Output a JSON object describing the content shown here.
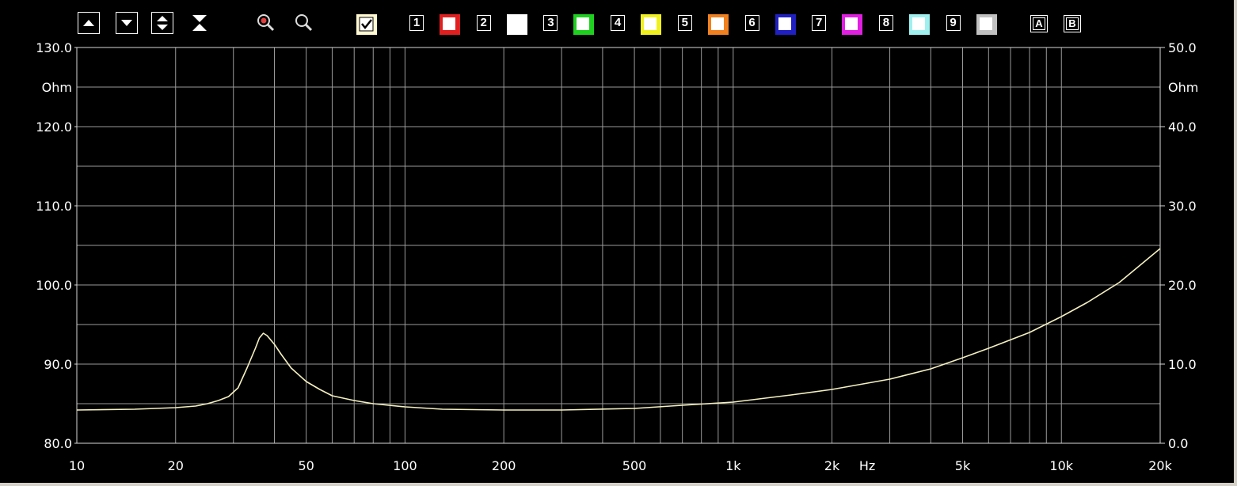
{
  "toolbar": {
    "buttons": [
      {
        "icon": "arrow-up-icon"
      },
      {
        "icon": "arrow-down-icon"
      },
      {
        "icon": "arrows-up-down-icon"
      },
      {
        "icon": "compress-vertical-icon"
      },
      {
        "icon": "zoom-in-icon"
      },
      {
        "icon": "zoom-out-icon"
      }
    ],
    "active_checkbox": true,
    "curve_slots": [
      {
        "label": "1",
        "color": "#e02020"
      },
      {
        "label": "2",
        "color": "#ffffff"
      },
      {
        "label": "3",
        "color": "#20d020"
      },
      {
        "label": "4",
        "color": "#f0f020"
      },
      {
        "label": "5",
        "color": "#f08020"
      },
      {
        "label": "6",
        "color": "#2020c0"
      },
      {
        "label": "7",
        "color": "#e020e0"
      },
      {
        "label": "8",
        "color": "#a0f0f0"
      },
      {
        "label": "9",
        "color": "#c0c0c0"
      }
    ],
    "a_label": "A",
    "b_label": "B"
  },
  "chart_data": {
    "type": "line",
    "x_scale": "log",
    "xlim": [
      10,
      20000
    ],
    "x_ticks": [
      {
        "value": 10,
        "label": "10"
      },
      {
        "value": 20,
        "label": "20"
      },
      {
        "value": 50,
        "label": "50"
      },
      {
        "value": 100,
        "label": "100"
      },
      {
        "value": 200,
        "label": "200"
      },
      {
        "value": 500,
        "label": "500"
      },
      {
        "value": 1000,
        "label": "1k"
      },
      {
        "value": 2000,
        "label": "2k"
      },
      {
        "value": 5000,
        "label": "5k"
      },
      {
        "value": 10000,
        "label": "10k"
      },
      {
        "value": 20000,
        "label": "20k"
      }
    ],
    "x_unit_label": "Hz",
    "left_axis": {
      "ylim": [
        80,
        130
      ],
      "ticks": [
        "80.0",
        "90.0",
        "100.0",
        "110.0",
        "120.0",
        "130.0"
      ],
      "unit_label": "Ohm"
    },
    "right_axis": {
      "ylim": [
        0,
        50
      ],
      "ticks": [
        "0.0",
        "10.0",
        "20.0",
        "30.0",
        "40.0",
        "50.0"
      ],
      "unit_label": "Ohm"
    },
    "grid": true,
    "series": [
      {
        "axis": "right",
        "color": "#f5f0c0",
        "x": [
          10,
          15,
          20,
          23,
          25,
          27,
          29,
          31,
          33,
          35,
          36,
          37,
          38,
          40,
          42,
          45,
          50,
          55,
          60,
          70,
          80,
          100,
          130,
          200,
          300,
          500,
          700,
          1000,
          1500,
          2000,
          3000,
          4000,
          5000,
          6000,
          8000,
          10000,
          12000,
          15000,
          20000
        ],
        "y": [
          4.2,
          4.3,
          4.5,
          4.7,
          5.0,
          5.4,
          5.9,
          7.0,
          9.5,
          12.0,
          13.3,
          13.9,
          13.6,
          12.5,
          11.2,
          9.5,
          7.8,
          6.8,
          6.0,
          5.4,
          5.0,
          4.6,
          4.3,
          4.2,
          4.2,
          4.4,
          4.8,
          5.2,
          6.1,
          6.8,
          8.1,
          9.4,
          10.8,
          12.0,
          14.0,
          16.0,
          17.8,
          20.3,
          24.6
        ]
      }
    ]
  }
}
